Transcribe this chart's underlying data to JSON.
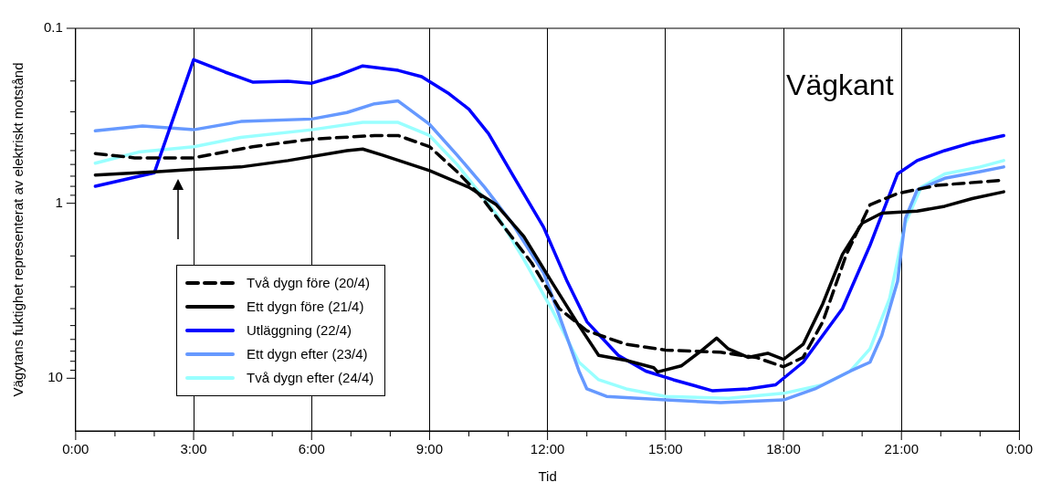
{
  "chart_data": {
    "type": "line",
    "xlabel": "Tid",
    "ylabel": "Vägytans fuktighet representerat av elektriskt motstånd",
    "annotations": [
      "Vägkant"
    ],
    "log": "y",
    "grid": "x",
    "legend": "bottom left",
    "marker": "none",
    "xlim": [
      0,
      24
    ],
    "xticks": [
      {
        "value": 0,
        "label": "0:00"
      },
      {
        "value": 1,
        "label": null
      },
      {
        "value": 2,
        "label": null
      },
      {
        "value": 3,
        "label": "3:00"
      },
      {
        "value": 4,
        "label": null
      },
      {
        "value": 5,
        "label": null
      },
      {
        "value": 6,
        "label": "6:00"
      },
      {
        "value": 7,
        "label": null
      },
      {
        "value": 8,
        "label": null
      },
      {
        "value": 9,
        "label": "9:00"
      },
      {
        "value": 10,
        "label": null
      },
      {
        "value": 11,
        "label": null
      },
      {
        "value": 12,
        "label": "12:00"
      },
      {
        "value": 13,
        "label": null
      },
      {
        "value": 14,
        "label": null
      },
      {
        "value": 15,
        "label": "15:00"
      },
      {
        "value": 16,
        "label": null
      },
      {
        "value": 17,
        "label": null
      },
      {
        "value": 18,
        "label": "18:00"
      },
      {
        "value": 19,
        "label": null
      },
      {
        "value": 20,
        "label": null
      },
      {
        "value": 21,
        "label": "21:00"
      },
      {
        "value": 22,
        "label": null
      },
      {
        "value": 23,
        "label": null
      },
      {
        "value": 24,
        "label": "0:00"
      }
    ],
    "ylim": [
      20,
      0.1
    ],
    "yticks": [
      0.1,
      {
        "value": 0.2,
        "label": null
      },
      {
        "value": 0.3,
        "label": null
      },
      {
        "value": 0.4,
        "label": null
      },
      {
        "value": 0.5,
        "label": null
      },
      {
        "value": 0.6,
        "label": null
      },
      {
        "value": 0.7,
        "label": null
      },
      {
        "value": 0.8,
        "label": null
      },
      {
        "value": 0.9,
        "label": null
      },
      1,
      {
        "value": 2,
        "label": null
      },
      {
        "value": 3,
        "label": null
      },
      {
        "value": 4,
        "label": null
      },
      {
        "value": 5,
        "label": null
      },
      {
        "value": 6,
        "label": null
      },
      {
        "value": 7,
        "label": null
      },
      {
        "value": 8,
        "label": null
      },
      {
        "value": 9,
        "label": null
      },
      10
    ],
    "series": [
      {
        "name": "Två dygn före (20/4)",
        "color": "#000000",
        "line_style": "dashed",
        "x": [
          0.5,
          1.5,
          3,
          4.5,
          6,
          7.6,
          8.2,
          9,
          9.7,
          10.3,
          10.9,
          11.6,
          12.3,
          13,
          14,
          15,
          16.4,
          17.3,
          18,
          18.5,
          19,
          19.6,
          20.2,
          20.9,
          21.9,
          23.5
        ],
        "values": [
          0.52,
          0.55,
          0.55,
          0.475,
          0.43,
          0.41,
          0.41,
          0.475,
          0.66,
          0.91,
          1.37,
          2.2,
          4.0,
          5.35,
          6.4,
          6.9,
          7.1,
          7.6,
          8.6,
          7.6,
          4.75,
          1.96,
          1.02,
          0.88,
          0.79,
          0.74
        ]
      },
      {
        "name": "Ett dygn före (21/4)",
        "color": "#000000",
        "line_style": "solid",
        "x": [
          0.5,
          2.1,
          3,
          4.2,
          5.4,
          6.9,
          7.3,
          7.8,
          9,
          10,
          10.7,
          11.4,
          12.1,
          12.8,
          13.3,
          14,
          14.7,
          14.8,
          15.4,
          15.9,
          16.3,
          16.6,
          17.1,
          17.6,
          18,
          18.5,
          19,
          19.5,
          20,
          20.5,
          21.4,
          22.1,
          22.8,
          23.6
        ],
        "values": [
          0.69,
          0.66,
          0.64,
          0.62,
          0.57,
          0.5,
          0.49,
          0.53,
          0.65,
          0.81,
          1.02,
          1.55,
          2.8,
          5.0,
          7.4,
          7.9,
          8.7,
          9.2,
          8.5,
          7.0,
          5.9,
          6.8,
          7.6,
          7.2,
          7.8,
          6.4,
          3.75,
          1.96,
          1.3,
          1.14,
          1.11,
          1.04,
          0.94,
          0.86
        ]
      },
      {
        "name": "Utläggning (22/4)",
        "color": "#0000ff",
        "line_style": "solid",
        "x": [
          0.5,
          2,
          3,
          3.8,
          4.5,
          5.4,
          6,
          6.7,
          7.3,
          8.2,
          8.8,
          9.5,
          10,
          10.5,
          11.1,
          11.9,
          12.5,
          13,
          13.8,
          14.5,
          15.2,
          16.2,
          17.1,
          17.8,
          18.5,
          19.5,
          20.2,
          20.9,
          21.4,
          22.1,
          22.8,
          23.6
        ],
        "values": [
          0.8,
          0.67,
          0.151,
          0.178,
          0.203,
          0.201,
          0.206,
          0.185,
          0.164,
          0.174,
          0.189,
          0.237,
          0.29,
          0.4,
          0.68,
          1.37,
          2.8,
          4.75,
          7.4,
          9.1,
          10.2,
          11.8,
          11.5,
          10.9,
          8.1,
          4.0,
          1.74,
          0.68,
          0.57,
          0.5,
          0.45,
          0.41
        ]
      },
      {
        "name": "Ett dygn efter (23/4)",
        "color": "#6699ff",
        "line_style": "solid",
        "x": [
          0.5,
          1.7,
          3,
          4.2,
          6,
          6.9,
          7.6,
          8.2,
          9,
          9.7,
          10.4,
          11.1,
          11.9,
          12.3,
          12.8,
          13,
          13.5,
          15,
          16.4,
          18,
          18.8,
          19.7,
          20.2,
          20.5,
          20.9,
          21.1,
          21.4,
          22.1,
          23,
          23.6
        ],
        "values": [
          0.385,
          0.362,
          0.38,
          0.341,
          0.33,
          0.303,
          0.27,
          0.26,
          0.354,
          0.53,
          0.81,
          1.3,
          2.5,
          4.4,
          9.1,
          11.5,
          12.7,
          13.3,
          13.8,
          13.3,
          11.5,
          9.1,
          8.1,
          5.7,
          2.8,
          1.22,
          0.84,
          0.72,
          0.66,
          0.62
        ]
      },
      {
        "name": "Två dygn efter (24/4)",
        "color": "#99ffff",
        "line_style": "solid",
        "x": [
          0.5,
          1.6,
          3,
          4.2,
          6,
          7.3,
          8.2,
          9,
          9.7,
          10.7,
          11.4,
          12.1,
          12.8,
          13.3,
          14,
          15,
          16.6,
          18,
          19,
          19.7,
          20.2,
          20.7,
          21.1,
          21.5,
          22.1,
          23,
          23.6
        ],
        "values": [
          0.59,
          0.51,
          0.475,
          0.42,
          0.38,
          0.345,
          0.345,
          0.41,
          0.6,
          1.15,
          2.1,
          4.0,
          8.1,
          10.2,
          11.5,
          12.7,
          13.0,
          12.2,
          10.9,
          9.1,
          6.8,
          3.5,
          1.3,
          0.81,
          0.68,
          0.62,
          0.57
        ]
      }
    ]
  }
}
